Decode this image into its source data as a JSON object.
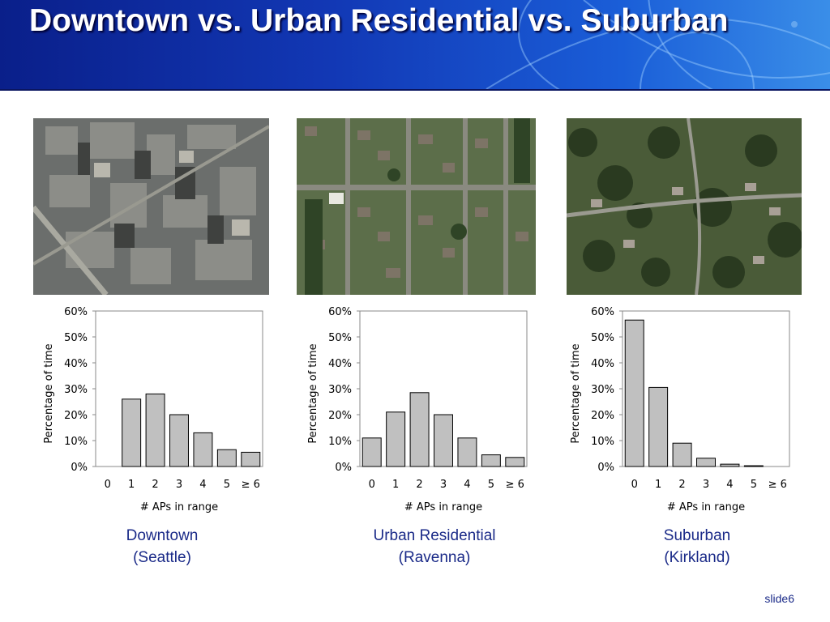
{
  "slide": {
    "title": "Downtown vs. Urban Residential vs. Suburban",
    "number_label": "slide6",
    "colors": {
      "header_dark": "#0a1f8a",
      "header_light": "#3a8ee8",
      "caption": "#1a2a88",
      "bar_fill": "#c0c0c0"
    }
  },
  "captions": [
    {
      "line1": "Downtown",
      "line2": "(Seattle)"
    },
    {
      "line1": "Urban Residential",
      "line2": "(Ravenna)"
    },
    {
      "line1": "Suburban",
      "line2": "(Kirkland)"
    }
  ],
  "photos": [
    {
      "kind": "aerial-photo-downtown"
    },
    {
      "kind": "aerial-photo-urban-residential"
    },
    {
      "kind": "aerial-photo-suburban"
    }
  ],
  "chart_data": [
    {
      "type": "bar",
      "categories": [
        "0",
        "1",
        "2",
        "3",
        "4",
        "5",
        "≥ 6"
      ],
      "values": [
        0,
        26,
        28,
        20,
        13,
        6.5,
        5.5
      ],
      "xlabel": "# APs in range",
      "ylabel": "Percentage of time",
      "ylim": [
        0,
        60
      ],
      "yticks": [
        "0%",
        "10%",
        "20%",
        "30%",
        "40%",
        "50%",
        "60%"
      ],
      "grid": false
    },
    {
      "type": "bar",
      "categories": [
        "0",
        "1",
        "2",
        "3",
        "4",
        "5",
        "≥ 6"
      ],
      "values": [
        11,
        21,
        28.5,
        20,
        11,
        4.5,
        3.5
      ],
      "xlabel": "# APs in range",
      "ylabel": "Percentage of time",
      "ylim": [
        0,
        60
      ],
      "yticks": [
        "0%",
        "10%",
        "20%",
        "30%",
        "40%",
        "50%",
        "60%"
      ],
      "grid": false
    },
    {
      "type": "bar",
      "categories": [
        "0",
        "1",
        "2",
        "3",
        "4",
        "5",
        "≥ 6"
      ],
      "values": [
        56.5,
        30.5,
        9,
        3.2,
        0.9,
        0.3,
        0
      ],
      "xlabel": "# APs in range",
      "ylabel": "Percentage of time",
      "ylim": [
        0,
        60
      ],
      "yticks": [
        "0%",
        "10%",
        "20%",
        "30%",
        "40%",
        "50%",
        "60%"
      ],
      "grid": false
    }
  ]
}
